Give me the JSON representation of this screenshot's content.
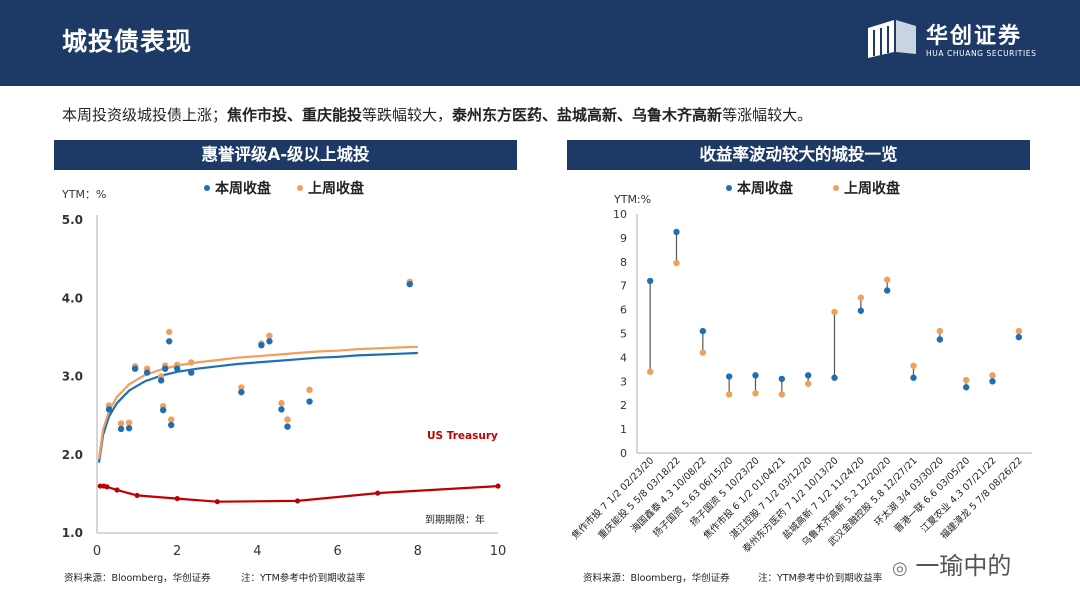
{
  "header": {
    "title": "城投债表现",
    "brand": "华创证券",
    "brand_en": "HUA CHUANG SECURITIES"
  },
  "summary": {
    "s1": "本周投资级城投债上涨；",
    "s2": "焦作市投、重庆能投",
    "s3": "等跌幅较大，",
    "s4": "泰州东方医药、盐城高新、乌鲁木齐高新",
    "s5": "等涨幅较大。"
  },
  "colors": {
    "this_week": "#1f6fb5",
    "last_week": "#f0a05a",
    "treasury": "#c00000",
    "header_bg": "#1d3a66"
  },
  "left_panel": {
    "title": "惠誉评级A-级以上城投",
    "source": "资料来源：Bloomberg，华创证券",
    "note": "注：YTM参考中价到期收益率"
  },
  "right_panel": {
    "title": "收益率波动较大的城投一览",
    "source": "资料来源：Bloomberg，华创证券",
    "note": "注：YTM参考中价到期收益率"
  },
  "watermark": "一瑜中的",
  "chart_data": [
    {
      "type": "scatter",
      "title": "惠誉评级A-级以上城投",
      "ylabel": "YTM：%",
      "xlabel": "到期期限：年",
      "xlim": [
        0,
        10
      ],
      "ylim": [
        1.0,
        5.0
      ],
      "xticks": [
        0,
        2,
        4,
        6,
        8,
        10
      ],
      "yticks": [
        "1.0",
        "2.0",
        "3.0",
        "4.0",
        "5.0"
      ],
      "legend": [
        "本周收盘",
        "上周收盘"
      ],
      "annotation": "US Treasury",
      "series": [
        {
          "name": "本周收盘",
          "points": [
            [
              0.3,
              2.58
            ],
            [
              0.6,
              2.33
            ],
            [
              0.8,
              2.34
            ],
            [
              0.95,
              3.1
            ],
            [
              1.25,
              3.05
            ],
            [
              1.6,
              2.95
            ],
            [
              1.65,
              2.57
            ],
            [
              1.7,
              3.1
            ],
            [
              1.8,
              3.45
            ],
            [
              1.85,
              2.38
            ],
            [
              2.0,
              3.1
            ],
            [
              2.35,
              3.05
            ],
            [
              3.6,
              2.8
            ],
            [
              4.1,
              3.4
            ],
            [
              4.3,
              3.45
            ],
            [
              4.6,
              2.58
            ],
            [
              4.75,
              2.36
            ],
            [
              5.3,
              2.68
            ],
            [
              7.8,
              4.18
            ]
          ]
        },
        {
          "name": "上周收盘",
          "points": [
            [
              0.3,
              2.63
            ],
            [
              0.6,
              2.4
            ],
            [
              0.8,
              2.41
            ],
            [
              0.95,
              3.13
            ],
            [
              1.25,
              3.1
            ],
            [
              1.6,
              3.0
            ],
            [
              1.65,
              2.62
            ],
            [
              1.7,
              3.14
            ],
            [
              1.8,
              3.57
            ],
            [
              1.85,
              2.45
            ],
            [
              2.0,
              3.15
            ],
            [
              2.35,
              3.18
            ],
            [
              3.6,
              2.86
            ],
            [
              4.1,
              3.42
            ],
            [
              4.3,
              3.52
            ],
            [
              4.6,
              2.66
            ],
            [
              4.75,
              2.45
            ],
            [
              5.3,
              2.83
            ],
            [
              7.8,
              4.21
            ]
          ]
        },
        {
          "name": "本周拟合",
          "type": "line",
          "x": [
            0.05,
            0.15,
            0.3,
            0.5,
            0.8,
            1.2,
            1.6,
            2,
            2.5,
            3,
            3.5,
            4,
            4.5,
            5,
            5.5,
            6,
            6.5,
            7,
            7.5,
            8
          ],
          "values": [
            1.9,
            2.25,
            2.49,
            2.66,
            2.82,
            2.94,
            3.01,
            3.06,
            3.1,
            3.13,
            3.16,
            3.18,
            3.2,
            3.22,
            3.24,
            3.25,
            3.27,
            3.28,
            3.29,
            3.3
          ]
        },
        {
          "name": "上周拟合",
          "type": "line",
          "x": [
            0.05,
            0.15,
            0.3,
            0.5,
            0.8,
            1.2,
            1.6,
            2,
            2.5,
            3,
            3.5,
            4,
            4.5,
            5,
            5.5,
            6,
            6.5,
            7,
            7.5,
            8
          ],
          "values": [
            1.95,
            2.32,
            2.56,
            2.74,
            2.9,
            3.02,
            3.09,
            3.14,
            3.18,
            3.21,
            3.24,
            3.26,
            3.28,
            3.3,
            3.32,
            3.33,
            3.35,
            3.36,
            3.37,
            3.38
          ]
        },
        {
          "name": "US Treasury",
          "type": "line",
          "x": [
            0.08,
            0.17,
            0.25,
            0.5,
            1,
            2,
            3,
            5,
            7,
            10
          ],
          "values": [
            1.6,
            1.6,
            1.59,
            1.55,
            1.48,
            1.44,
            1.4,
            1.41,
            1.51,
            1.6
          ]
        }
      ]
    },
    {
      "type": "dumbbell",
      "title": "收益率波动较大的城投一览",
      "ylabel": "YTM:%",
      "ylim": [
        0,
        10
      ],
      "yticks": [
        "0",
        "1",
        "2",
        "3",
        "4",
        "5",
        "6",
        "7",
        "8",
        "9",
        "10"
      ],
      "legend": [
        "本周收盘",
        "上周收盘"
      ],
      "categories": [
        "焦作市投 7 1/2 02/23/20",
        "重庆能投 5 5/8 03/18/22",
        "海国鑫泰 4.3 10/08/22",
        "扬子国资 5.63 06/15/20",
        "扬子国资 5 10/23/20",
        "焦作市投 6 1/2 01/04/21",
        "湛江控股 7 1/2 03/12/20",
        "泰州东方医药 7 1/2 10/13/20",
        "盐城高新 7 1/2 11/24/20",
        "乌鲁木齐高新 5.2 12/20/20",
        "武汉金融控股 5.8 12/27/21",
        "环太湖 3/4 03/30/20",
        "晋港一联 6.6 03/05/20",
        "江夏农业 4.3 07/21/22",
        "福建漳龙 5 7/8 08/26/22"
      ],
      "series": [
        {
          "name": "本周收盘",
          "values": [
            7.2,
            9.25,
            5.1,
            3.2,
            3.25,
            3.1,
            3.25,
            3.15,
            5.95,
            6.8,
            3.15,
            4.75,
            2.75,
            3.0,
            4.85
          ]
        },
        {
          "name": "上周收盘",
          "values": [
            3.4,
            7.95,
            4.2,
            2.45,
            2.5,
            2.45,
            2.9,
            5.9,
            6.5,
            7.25,
            3.65,
            5.1,
            3.05,
            3.25,
            5.1
          ]
        }
      ]
    }
  ]
}
